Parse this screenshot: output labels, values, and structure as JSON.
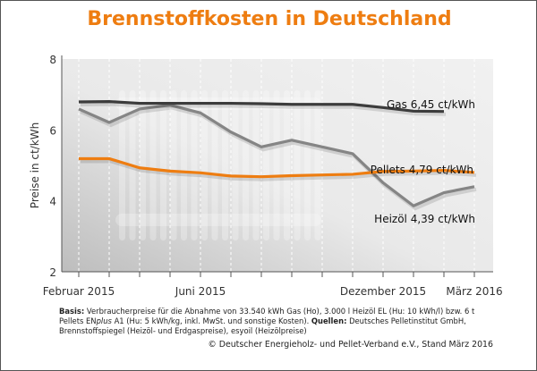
{
  "title": "Brennstoffkosten in Deutschland",
  "chart_data": {
    "type": "line",
    "title": "Brennstoffkosten in Deutschland",
    "ylabel": "Preise in ct/kWh",
    "xlabel": "",
    "ylim": [
      2,
      8
    ],
    "yticks": [
      2,
      4,
      6,
      8
    ],
    "x": [
      "Feb 2015",
      "Mär 2015",
      "Apr 2015",
      "Mai 2015",
      "Jun 2015",
      "Jul 2015",
      "Aug 2015",
      "Sep 2015",
      "Okt 2015",
      "Nov 2015",
      "Dez 2015",
      "Jan 2016",
      "Feb 2016",
      "Mär 2016"
    ],
    "xtick_labels": [
      {
        "index": 0,
        "label": "Februar 2015"
      },
      {
        "index": 4,
        "label": "Juni 2015"
      },
      {
        "index": 10,
        "label": "Dezember 2015"
      },
      {
        "index": 13,
        "label": "März 2016"
      }
    ],
    "grid": "vertical dashed",
    "series": [
      {
        "name": "Gas",
        "label": "Gas  6,45 ct/kWh",
        "color": "#3c3c3c",
        "values": [
          6.79,
          6.8,
          6.75,
          6.75,
          6.75,
          6.75,
          6.74,
          6.72,
          6.72,
          6.72,
          6.63,
          6.53,
          6.52,
          null
        ]
      },
      {
        "name": "Pellets",
        "label": "Pellets  4,79 ct/kWh",
        "color": "#ee7d11",
        "values": [
          5.19,
          5.19,
          4.93,
          4.84,
          4.79,
          4.7,
          4.68,
          4.71,
          4.73,
          4.75,
          4.83,
          4.84,
          4.86,
          4.8
        ]
      },
      {
        "name": "Heizöl",
        "label": "Heizöl 4,39 ct/kWh",
        "color": "#858585",
        "values": [
          6.59,
          6.21,
          6.59,
          6.7,
          6.48,
          5.94,
          5.52,
          5.71,
          5.52,
          5.33,
          4.51,
          3.86,
          4.23,
          4.4
        ]
      }
    ]
  },
  "footnote": {
    "basis_label": "Basis:",
    "basis_text": " Verbraucherpreise für die Abnahme von 33.540 kWh Gas (Ho), 3.000 l Heizöl EL (Hu: 10 kWh/l) bzw. 6 t Pellets EN",
    "plus": "plus",
    "basis_text2": " A1 (Hu: 5 kWh/kg, inkl. MwSt. und sonstige Kosten). ",
    "sources_label": "Quellen:",
    "sources_text": " Deutsches Pelletinstitut GmbH, Brennstoffspiegel (Heizöl- und Erdgaspreise), esyoil (Heizölpreise)"
  },
  "copyright": "© Deutscher Energieholz- und Pellet-Verband e.V., Stand März 2016"
}
